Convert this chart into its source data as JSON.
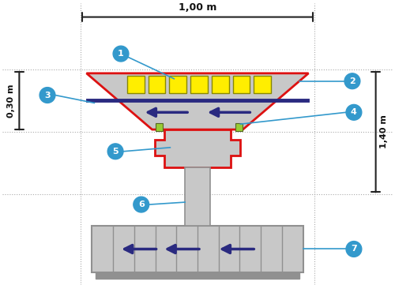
{
  "bg_color": "#ffffff",
  "dim_line_color": "#222222",
  "red_outline": "#dd1111",
  "gray_fill": "#b0b0b0",
  "gray_light": "#c8c8c8",
  "gray_dark": "#909090",
  "yellow_fill": "#ffee00",
  "arrow_color": "#2a2a80",
  "cyan_circle": "#3399cc",
  "green_accent": "#99cc33",
  "dashed_color": "#aaaaaa",
  "dot_line_color": "#aaaaaa",
  "top_dim_label": "1,00 m",
  "left_dim_label": "0,30 m",
  "right_dim_label": "1,40 m",
  "label1": "1",
  "label2": "2",
  "label3": "3",
  "label4": "4",
  "label5": "5",
  "label6": "6",
  "label7": "7",
  "num_yellow_squares": 7
}
